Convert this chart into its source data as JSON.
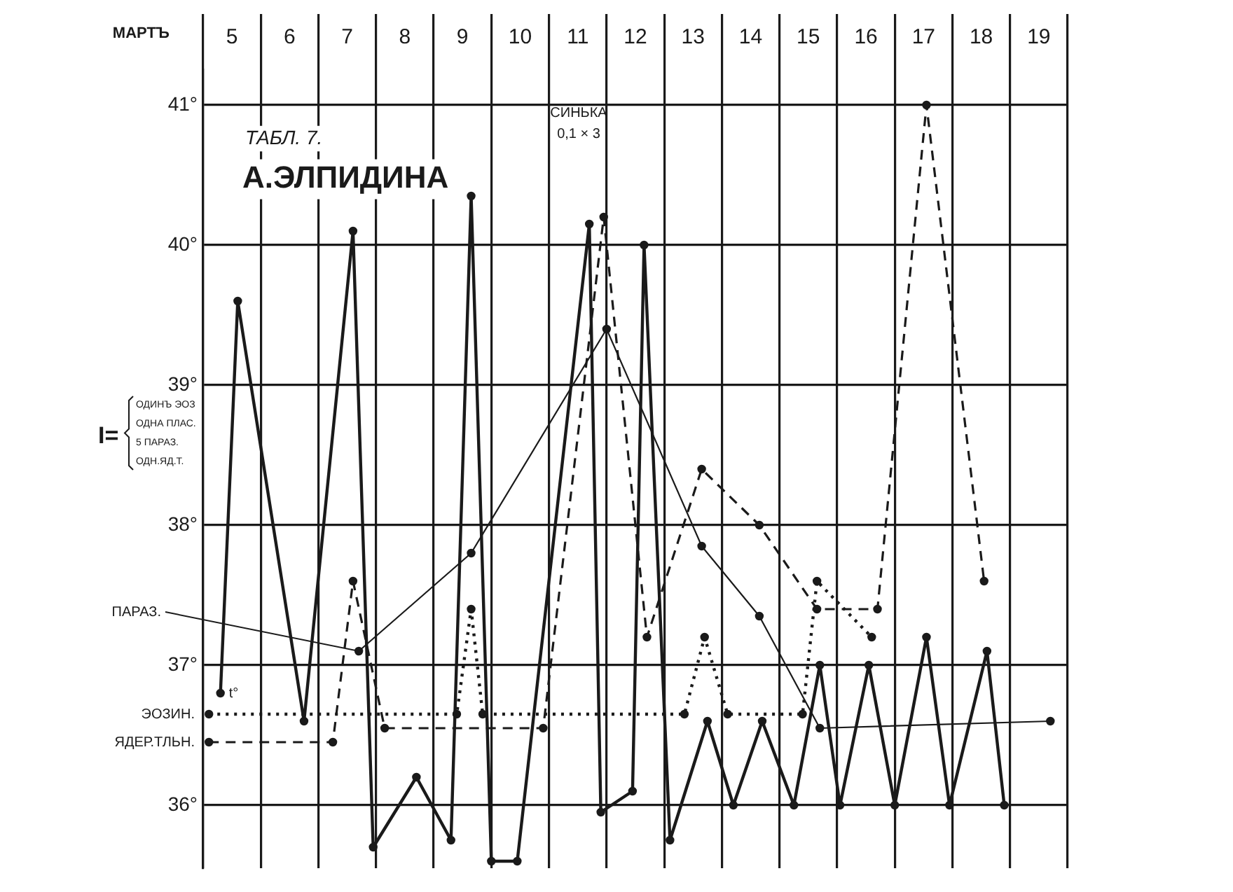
{
  "chart_data": {
    "type": "line",
    "title": "А.ЭЛПИДИНА",
    "subtitle": "ТАБЛ. 7.",
    "xlabel": "МАРТЪ",
    "xlim": [
      4.5,
      19.5
    ],
    "xticks": [
      {
        "value": 4.5,
        "label": null
      },
      5,
      {
        "value": 5.5,
        "label": null
      },
      6,
      {
        "value": 6.5,
        "label": null
      },
      7,
      {
        "value": 7.5,
        "label": null
      },
      8,
      {
        "value": 8.5,
        "label": null
      },
      9,
      {
        "value": 9.5,
        "label": null
      },
      10,
      {
        "value": 10.5,
        "label": null
      },
      11,
      {
        "value": 11.5,
        "label": null
      },
      12,
      {
        "value": 12.5,
        "label": null
      },
      13,
      {
        "value": 13.5,
        "label": null
      },
      14,
      {
        "value": 14.5,
        "label": null
      },
      15,
      {
        "value": 15.5,
        "label": null
      },
      16,
      {
        "value": 16.5,
        "label": null
      },
      17,
      {
        "value": 17.5,
        "label": null
      },
      18,
      {
        "value": 18.5,
        "label": null
      },
      19,
      {
        "value": 19.5,
        "label": null
      }
    ],
    "ylim": [
      35.55,
      41.25
    ],
    "yticks": [
      {
        "value": 36,
        "label": "36°"
      },
      {
        "value": 37,
        "label": "37°"
      },
      {
        "value": 38,
        "label": "38°"
      },
      {
        "value": 39,
        "label": "39°"
      },
      {
        "value": 40,
        "label": "40°"
      },
      {
        "value": 41,
        "label": "41°"
      }
    ],
    "grid": true,
    "legend": false,
    "marker": "circle",
    "series": [
      {
        "name": "t°",
        "color": "#1a1a1a",
        "line_style": "solid",
        "x": [
          4.8,
          5.1,
          6.25,
          7.1,
          7.45,
          8.2,
          8.8,
          9.15,
          9.5,
          9.95,
          11.2,
          11.4,
          11.95,
          12.15,
          12.6,
          13.25,
          13.7,
          14.2,
          14.75,
          15.2,
          15.55,
          16.05,
          16.5,
          17.05,
          17.45,
          18.1,
          18.4
        ],
        "values": [
          36.8,
          39.6,
          36.6,
          40.1,
          35.7,
          36.2,
          35.75,
          40.35,
          35.6,
          35.6,
          40.15,
          35.95,
          36.1,
          40.0,
          35.75,
          36.6,
          36.0,
          36.6,
          36.0,
          37.0,
          36.0,
          37.0,
          36.0,
          37.2,
          36.0,
          37.1,
          36.0
        ]
      },
      {
        "name": "ЭОЗИН.",
        "color": "#1a1a1a",
        "line_style": "dotted",
        "x": [
          4.6,
          8.9,
          9.15,
          9.35,
          12.85,
          13.2,
          13.6,
          14.9,
          15.15,
          16.1
        ],
        "values": [
          36.65,
          36.65,
          37.4,
          36.65,
          36.65,
          37.2,
          36.65,
          36.65,
          37.6,
          37.2
        ]
      },
      {
        "name": "ЯДЕР.ТЛЬН.",
        "color": "#1a1a1a",
        "line_style": "dashed",
        "x": [
          4.6,
          6.75,
          7.1,
          7.65,
          10.4,
          11.45,
          12.2,
          13.15,
          14.15,
          15.15,
          16.2,
          17.05,
          18.05
        ],
        "values": [
          36.45,
          36.45,
          37.6,
          36.55,
          36.55,
          40.2,
          37.2,
          38.4,
          38.0,
          37.4,
          37.4,
          41.0,
          37.6
        ]
      },
      {
        "name": "ПАРАЗ.",
        "color": "#1a1a1a",
        "line_style": "solid",
        "x": [
          7.2,
          9.15,
          11.5,
          13.15,
          14.15,
          15.2,
          19.2
        ],
        "values": [
          37.1,
          37.8,
          39.4,
          37.85,
          37.35,
          36.55,
          36.6
        ]
      }
    ],
    "annotations": [
      "I=",
      "ОДИНЪ ЭОЗ\nОДНА ПЛАС.\n5 ПАРАЗ.\nОДН.ЯД.Т.",
      "СИНЬКА\n0,1 × 3"
    ]
  }
}
